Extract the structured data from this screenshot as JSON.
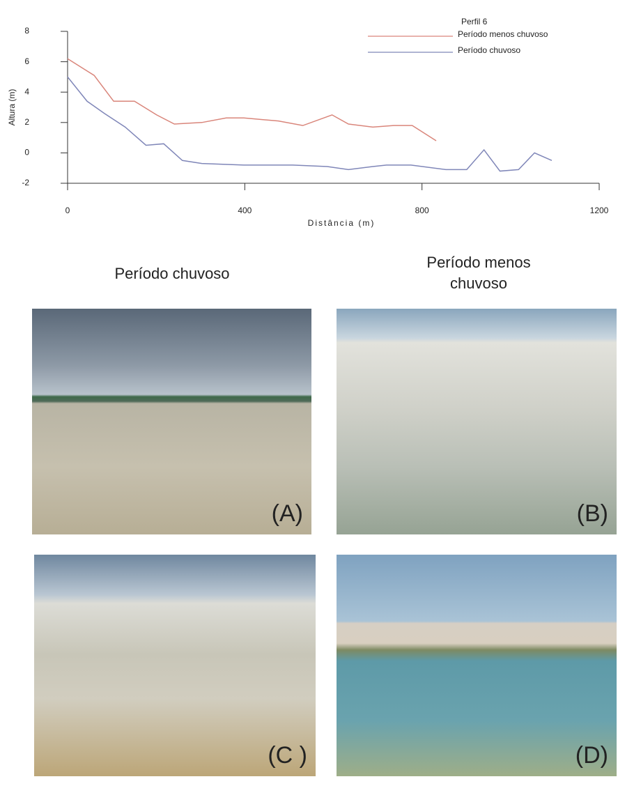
{
  "chart_data": {
    "type": "line",
    "title": "Perfil 6",
    "x_label": "Distância (m)",
    "y_label": "Altura (m)",
    "xlim": [
      0,
      1200
    ],
    "xticks": [
      0,
      400,
      800,
      1200
    ],
    "ylim": [
      -2,
      8
    ],
    "yticks": [
      -2,
      0,
      2,
      4,
      6,
      8
    ],
    "legend": "top-right",
    "series": [
      {
        "name": "Período menos chuvoso",
        "color": "#d9857a",
        "x": [
          0,
          60,
          104,
          151,
          201,
          241,
          303,
          358,
          398,
          476,
          531,
          597,
          634,
          689,
          736,
          778,
          832
        ],
        "values": [
          6.2,
          5.1,
          3.4,
          3.4,
          2.5,
          1.9,
          2.0,
          2.3,
          2.3,
          2.1,
          1.8,
          2.5,
          1.9,
          1.7,
          1.8,
          1.8,
          0.8
        ]
      },
      {
        "name": "Período chuvoso",
        "color": "#7f86b8",
        "x": [
          0,
          44,
          83,
          130,
          177,
          217,
          259,
          303,
          398,
          508,
          586,
          634,
          689,
          720,
          775,
          854,
          901,
          940,
          976,
          1018,
          1054,
          1093
        ],
        "values": [
          5.0,
          3.4,
          2.6,
          1.7,
          0.5,
          0.6,
          -0.5,
          -0.7,
          -0.8,
          -0.8,
          -0.9,
          -1.1,
          -0.9,
          -0.8,
          -0.8,
          -1.1,
          -1.1,
          0.2,
          -1.2,
          -1.1,
          0.0,
          -0.5
        ]
      }
    ]
  },
  "figure": {
    "column_titles": [
      "Período chuvoso",
      "Período menos chuvoso"
    ],
    "panels": [
      {
        "label": "(A)"
      },
      {
        "label": "(B)"
      },
      {
        "label": "(C )"
      },
      {
        "label": "(D)"
      }
    ]
  }
}
